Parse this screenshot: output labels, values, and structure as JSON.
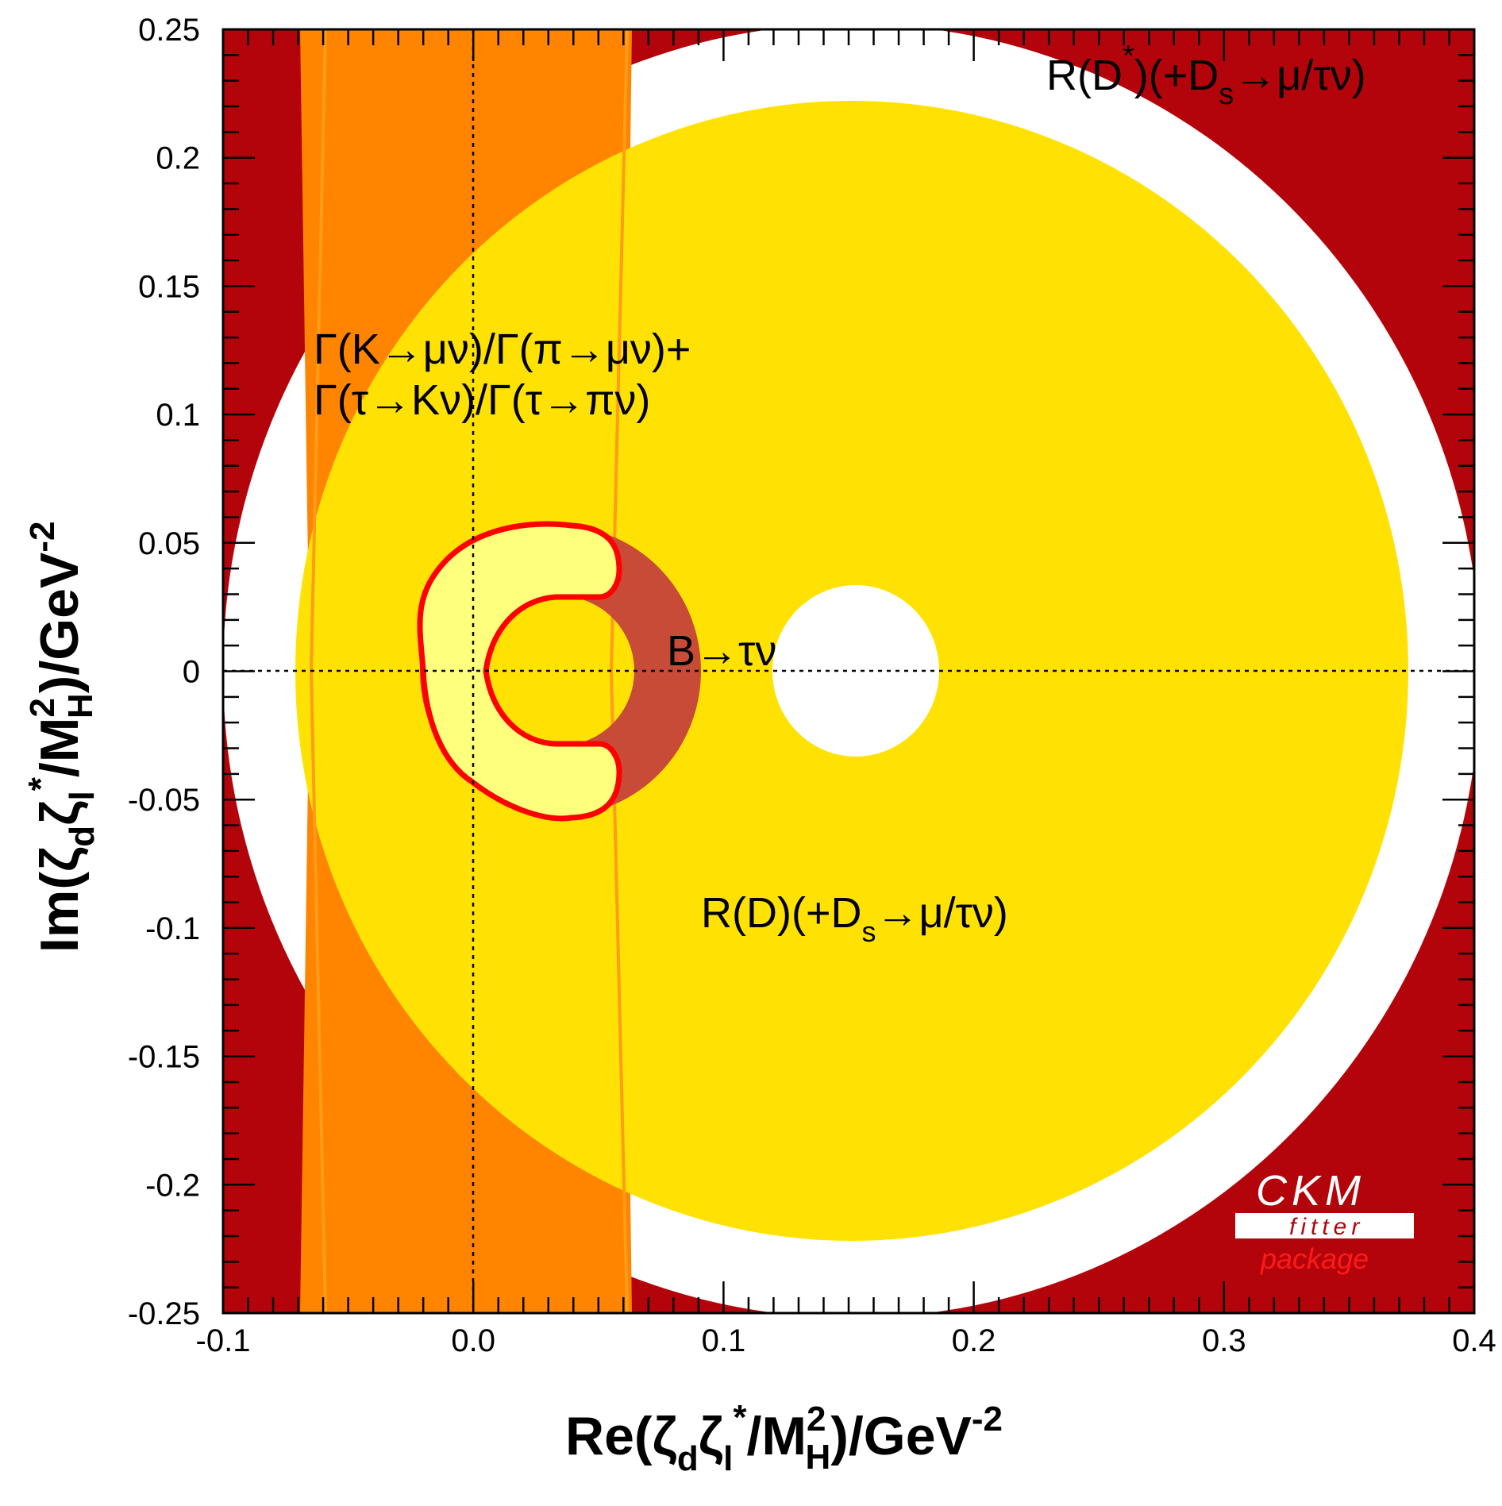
{
  "chart_data": {
    "type": "contour",
    "title": "",
    "xlabel": "Re(ζdζl*/MH²)/GeV-2",
    "ylabel": "Im(ζdζl*/MH²)/GeV-2",
    "xlim": [
      -0.1,
      0.4
    ],
    "ylim": [
      -0.25,
      0.25
    ],
    "x_ticks": [
      {
        "value": -0.1,
        "label": "-0.1"
      },
      {
        "value": 0.0,
        "label": "0.0"
      },
      {
        "value": 0.1,
        "label": "0.1"
      },
      {
        "value": 0.2,
        "label": "0.2"
      },
      {
        "value": 0.3,
        "label": "0.3"
      },
      {
        "value": 0.4,
        "label": "0.4"
      }
    ],
    "y_ticks": [
      {
        "value": 0.25,
        "label": "0.25"
      },
      {
        "value": 0.2,
        "label": "0.2"
      },
      {
        "value": 0.15,
        "label": "0.15"
      },
      {
        "value": 0.1,
        "label": "0.1"
      },
      {
        "value": 0.05,
        "label": "0.05"
      },
      {
        "value": 0.0,
        "label": "0"
      },
      {
        "value": -0.05,
        "label": "-0.05"
      },
      {
        "value": -0.1,
        "label": "-0.1"
      },
      {
        "value": -0.15,
        "label": "-0.15"
      },
      {
        "value": -0.2,
        "label": "-0.2"
      },
      {
        "value": -0.25,
        "label": "-0.25"
      }
    ],
    "regions": {
      "rdstar": {
        "center": [
          0.155,
          0.0
        ],
        "r_excluded": 0.252,
        "color": "#b3040b"
      },
      "kaon_band": {
        "x_min": -0.065,
        "x_max": 0.063,
        "color": "#ff8400"
      },
      "rd": {
        "center": [
          0.155,
          0.0
        ],
        "r_outer": 0.222,
        "r_inner": 0.033,
        "color": "#ffe203"
      },
      "btaunu": {
        "center": [
          0.033,
          0.0
        ],
        "r_outer": 0.056,
        "r_inner": 0.029,
        "color": "#c84b37"
      },
      "combined_fit": {
        "color": "#ffff7e",
        "outline": "#ff0000"
      }
    },
    "labels": {
      "rdstar_main": "R(D",
      "rdstar_sup": "*",
      "rdstar_rest": ")(+D",
      "rdstar_sub": "s",
      "rdstar_end": "→μ/τν)",
      "kaon_line1": "Γ(K→μν)/Γ(π→μν)+",
      "kaon_line2": "Γ(τ→Kν)/Γ(τ→πν)",
      "btaunu": "B→τν",
      "rd_main": "R(D)(+D",
      "rd_sub": "s",
      "rd_end": "→μ/τν)"
    },
    "axis_title_parts": {
      "x_pre": "Re(ζ",
      "x_sub1": "d",
      "x_mid1": "ζ",
      "x_sub2": "l",
      "x_sup1": "*",
      "x_mid2": "/M",
      "x_sup2": "2",
      "x_sub3": "H",
      "x_end": ")/GeV",
      "x_sup3": "-2",
      "y_pre": "Im(ζ",
      "y_sub1": "d",
      "y_mid1": "ζ",
      "y_sub2": "l",
      "y_sup1": "*",
      "y_mid2": "/M",
      "y_sup2": "2",
      "y_sub3": "H",
      "y_end": ")/GeV",
      "y_sup3": "-2"
    }
  },
  "logo": {
    "line1": "CKM",
    "line2": "fitter",
    "line3": "package"
  }
}
